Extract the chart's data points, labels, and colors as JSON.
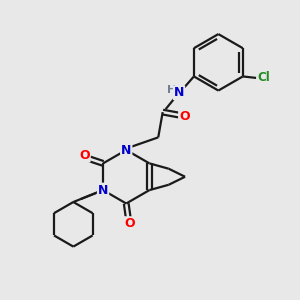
{
  "background_color": "#e8e8e8",
  "atom_colors": {
    "C": "#000000",
    "N": "#0000cd",
    "O": "#ff0000",
    "Cl": "#228b22",
    "H": "#708090"
  },
  "bond_color": "#1a1a1a",
  "bond_width": 1.6,
  "figsize": [
    3.0,
    3.0
  ],
  "dpi": 100,
  "xlim": [
    0,
    10
  ],
  "ylim": [
    0,
    10
  ]
}
